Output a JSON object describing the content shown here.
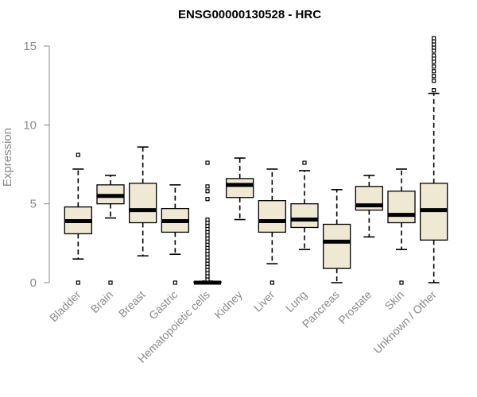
{
  "chart_data": {
    "type": "boxplot",
    "title": "ENSG00000130528 - HRC",
    "xlabel": "",
    "ylabel": "Expression",
    "ylim": [
      0,
      15.5
    ],
    "yticks": [
      "0",
      "5",
      "10",
      "15"
    ],
    "categories": [
      "Bladder",
      "Brain",
      "Breast",
      "Gastric",
      "Hematopoietic cells",
      "Kidney",
      "Liver",
      "Lung",
      "Pancreas",
      "Prostate",
      "Skin",
      "Unknown / Other"
    ],
    "series": [
      {
        "values": [
          {
            "whisker_low": 1.5,
            "q1": 3.1,
            "median": 3.9,
            "q3": 4.8,
            "whisker_high": 7.2,
            "outliers": [
              0,
              8.1
            ]
          },
          {
            "whisker_low": 4.1,
            "q1": 5.0,
            "median": 5.5,
            "q3": 6.2,
            "whisker_high": 6.8,
            "outliers": [
              0
            ]
          },
          {
            "whisker_low": 1.7,
            "q1": 3.8,
            "median": 4.6,
            "q3": 6.3,
            "whisker_high": 8.6,
            "outliers": []
          },
          {
            "whisker_low": 1.8,
            "q1": 3.2,
            "median": 3.9,
            "q3": 4.7,
            "whisker_high": 6.2,
            "outliers": [
              0
            ]
          },
          {
            "whisker_low": 0,
            "q1": 0,
            "median": 0,
            "q3": 0.05,
            "whisker_high": 0.1,
            "outliers": [
              0.2,
              0.4,
              0.6,
              0.8,
              1.0,
              1.2,
              1.4,
              1.6,
              1.8,
              2.0,
              2.2,
              2.4,
              2.6,
              2.8,
              3.0,
              3.2,
              3.4,
              3.6,
              3.8,
              4.0,
              5.3,
              5.8,
              6.1,
              7.6
            ]
          },
          {
            "whisker_low": 4.0,
            "q1": 5.4,
            "median": 6.2,
            "q3": 6.6,
            "whisker_high": 7.9,
            "outliers": []
          },
          {
            "whisker_low": 1.2,
            "q1": 3.2,
            "median": 3.9,
            "q3": 5.2,
            "whisker_high": 7.2,
            "outliers": [
              0
            ]
          },
          {
            "whisker_low": 2.1,
            "q1": 3.5,
            "median": 4.0,
            "q3": 5.0,
            "whisker_high": 7.1,
            "outliers": [
              7.6
            ]
          },
          {
            "whisker_low": 0,
            "q1": 0.9,
            "median": 2.6,
            "q3": 3.7,
            "whisker_high": 5.9,
            "outliers": []
          },
          {
            "whisker_low": 2.9,
            "q1": 4.6,
            "median": 4.9,
            "q3": 6.1,
            "whisker_high": 6.8,
            "outliers": []
          },
          {
            "whisker_low": 2.1,
            "q1": 3.8,
            "median": 4.3,
            "q3": 5.8,
            "whisker_high": 7.2,
            "outliers": [
              0
            ]
          },
          {
            "whisker_low": 0,
            "q1": 2.7,
            "median": 4.6,
            "q3": 6.3,
            "whisker_high": 12.0,
            "outliers": [
              12.2,
              12.8,
              13.1,
              13.4,
              13.7,
              14.0,
              14.2,
              14.4,
              14.7,
              14.9,
              15.1,
              15.3,
              15.5
            ]
          }
        ]
      }
    ],
    "grid": false,
    "legend": "none",
    "colors": {
      "box_fill": "#efe8d2",
      "box_stroke": "#000000",
      "axis_text": "#8a8a8a",
      "axis_line": "#8a8a8a"
    }
  }
}
